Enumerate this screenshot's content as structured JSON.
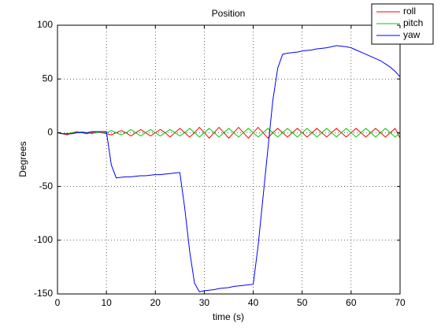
{
  "chart_data": {
    "type": "line",
    "title": "Position",
    "xlabel": "time (s)",
    "ylabel": "Degrees",
    "x": [
      0,
      1,
      2,
      3,
      4,
      5,
      6,
      7,
      8,
      9,
      10,
      11,
      12,
      13,
      14,
      15,
      16,
      17,
      18,
      19,
      20,
      21,
      22,
      23,
      24,
      25,
      26,
      27,
      28,
      29,
      30,
      31,
      32,
      33,
      34,
      35,
      36,
      37,
      38,
      39,
      40,
      41,
      42,
      43,
      44,
      45,
      46,
      47,
      48,
      49,
      50,
      51,
      52,
      53,
      54,
      55,
      56,
      57,
      58,
      59,
      60,
      61,
      62,
      63,
      64,
      65,
      66,
      67,
      68,
      69,
      70
    ],
    "series": [
      {
        "name": "roll",
        "color": "#ff0000",
        "values": [
          0,
          -1,
          -2,
          0,
          1,
          0,
          -1,
          0,
          1,
          0,
          -1,
          -2,
          0,
          2,
          0,
          -3,
          0,
          3,
          0,
          -3,
          0,
          3,
          0,
          -4,
          0,
          4,
          0,
          -4,
          0,
          5,
          0,
          -5,
          0,
          5,
          0,
          -5,
          0,
          5,
          0,
          -5,
          0,
          5,
          0,
          -5,
          0,
          4,
          0,
          -4,
          0,
          4,
          0,
          -4,
          0,
          4,
          0,
          -4,
          0,
          4,
          0,
          -4,
          0,
          4,
          0,
          -4,
          0,
          4,
          0,
          -4,
          0,
          4,
          -5
        ]
      },
      {
        "name": "pitch",
        "color": "#00cc00",
        "values": [
          0,
          -1,
          -1,
          0,
          0,
          1,
          0,
          -1,
          0,
          1,
          0,
          2,
          0,
          -2,
          0,
          3,
          0,
          -3,
          0,
          3,
          0,
          -3,
          0,
          3,
          0,
          -3,
          0,
          4,
          0,
          -4,
          0,
          4,
          0,
          -4,
          0,
          4,
          0,
          -4,
          0,
          4,
          0,
          -4,
          0,
          4,
          0,
          -4,
          0,
          4,
          0,
          -4,
          0,
          4,
          0,
          -4,
          0,
          4,
          0,
          -4,
          0,
          4,
          0,
          -4,
          0,
          4,
          0,
          -4,
          0,
          4,
          0,
          -4,
          0
        ]
      },
      {
        "name": "yaw",
        "color": "#0000ff",
        "values": [
          0,
          -1,
          -1,
          -1,
          0,
          0,
          0,
          1,
          1,
          1,
          1,
          -30,
          -42,
          -41.5,
          -41,
          -41,
          -40.5,
          -40,
          -40,
          -39.5,
          -39,
          -39,
          -38.5,
          -38,
          -37.5,
          -37,
          -70,
          -110,
          -140,
          -148,
          -147,
          -146.5,
          -146,
          -145,
          -144.5,
          -144,
          -143,
          -142.5,
          -142,
          -141.5,
          -141,
          -105,
          -60,
          -15,
          30,
          60,
          73,
          74,
          74.5,
          75,
          76,
          76.5,
          77,
          78,
          78.5,
          79,
          80,
          81,
          80.5,
          80,
          79,
          77,
          75,
          73,
          71,
          69,
          67,
          64,
          61,
          57,
          52
        ]
      }
    ],
    "xlim": [
      0,
      70
    ],
    "xticks": [
      0,
      10,
      20,
      30,
      40,
      50,
      60,
      70
    ],
    "ylim": [
      -150,
      100
    ],
    "yticks": [
      -150,
      -100,
      -50,
      0,
      50,
      100
    ],
    "grid": true,
    "legend": "upper right"
  }
}
